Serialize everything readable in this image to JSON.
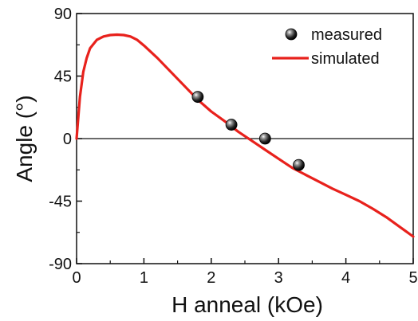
{
  "chart_data": {
    "type": "scatter",
    "xlabel": "H anneal (kOe)",
    "ylabel": "Angle (°)",
    "xlim": [
      0,
      5
    ],
    "ylim": [
      -90,
      90
    ],
    "x_ticks": [
      0,
      1,
      2,
      3,
      4,
      5
    ],
    "y_ticks": [
      -90,
      -45,
      0,
      45,
      90
    ],
    "x_tick_labels": [
      "0",
      "1",
      "2",
      "3",
      "4",
      "5"
    ],
    "y_tick_labels": [
      "-90",
      "-45",
      "0",
      "45",
      "90"
    ],
    "zero_line": true,
    "grid": false,
    "legend_position": "top-right",
    "series": [
      {
        "name": "measured",
        "kind": "points",
        "marker": "sphere",
        "color": "#111111",
        "x": [
          1.8,
          2.3,
          2.8,
          3.3
        ],
        "y": [
          30,
          10,
          0,
          -19
        ],
        "yerr": [
          3,
          3,
          3,
          3
        ]
      },
      {
        "name": "simulated",
        "kind": "line",
        "color": "#e8211c",
        "x": [
          0.0,
          0.05,
          0.1,
          0.15,
          0.2,
          0.3,
          0.4,
          0.5,
          0.6,
          0.7,
          0.8,
          0.9,
          1.0,
          1.2,
          1.4,
          1.6,
          1.8,
          2.0,
          2.2,
          2.4,
          2.6,
          2.8,
          3.0,
          3.2,
          3.4,
          3.6,
          3.8,
          4.0,
          4.2,
          4.4,
          4.6,
          4.8,
          5.0
        ],
        "y": [
          0,
          30,
          48,
          58,
          65,
          71,
          73.5,
          74.5,
          74.8,
          74.5,
          73.5,
          71,
          67,
          58,
          48,
          38,
          28,
          19.5,
          12.5,
          5,
          -1.5,
          -8,
          -14.5,
          -21,
          -26,
          -31,
          -36,
          -40.5,
          -45,
          -50.5,
          -56.5,
          -63.5,
          -70.5
        ]
      }
    ]
  }
}
